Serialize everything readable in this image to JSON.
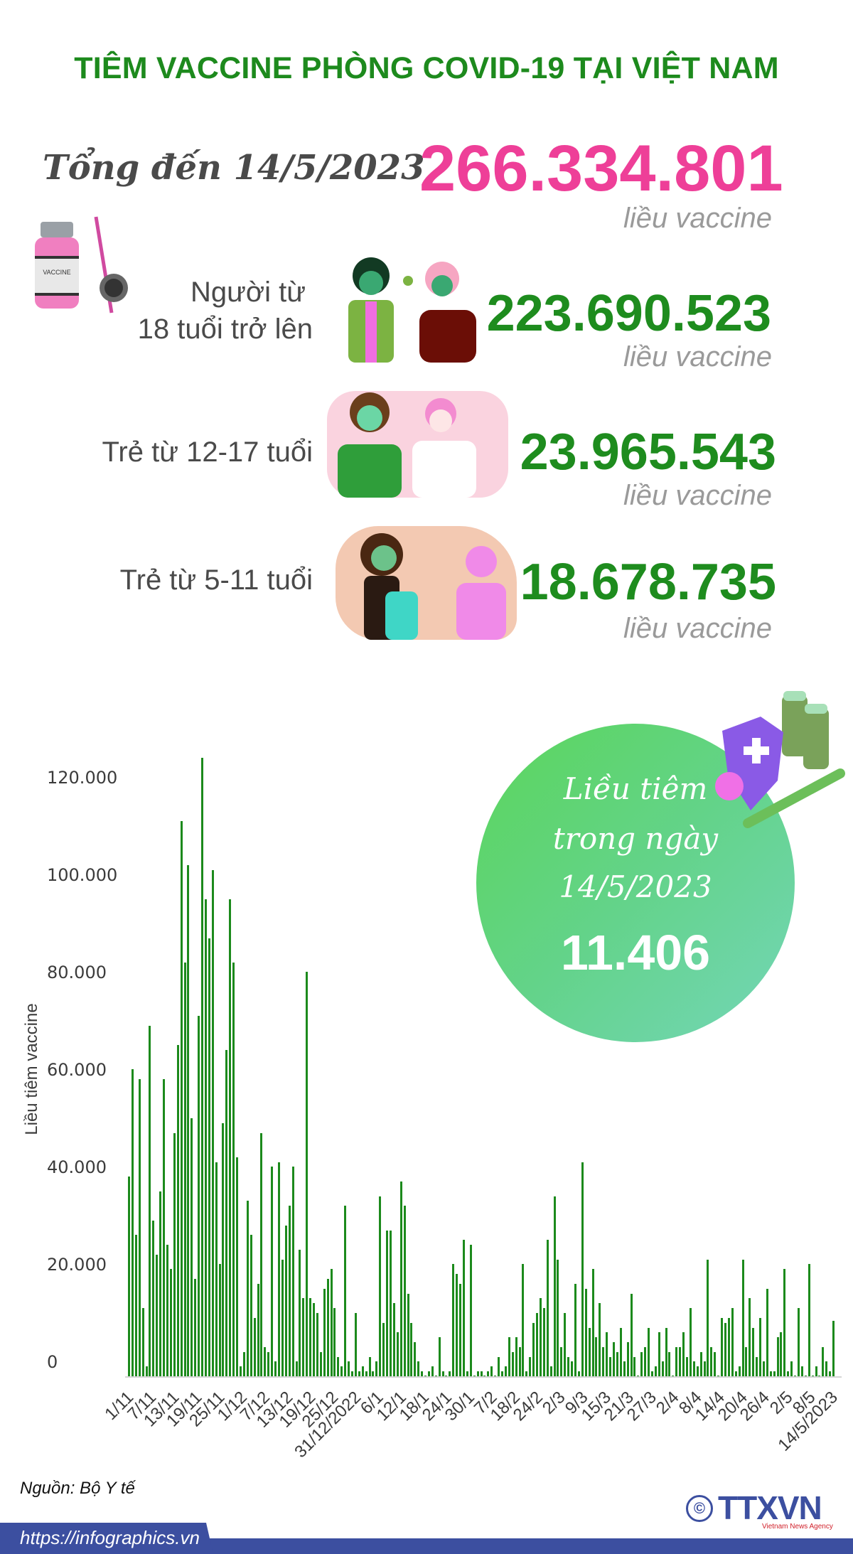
{
  "title": "TIÊM VACCINE PHÒNG COVID-19 TẠI VIỆT NAM",
  "total": {
    "label": "Tổng đến 14/5/2023",
    "value": "266.334.801",
    "unit": "liều vaccine",
    "icon": "vaccine-vial-icon"
  },
  "groups": [
    {
      "label_line1": "Người từ",
      "label_line2": "18 tuổi trở lên",
      "value": "223.690.523",
      "unit": "liều vaccine",
      "icon": "adult-vaccination-illustration"
    },
    {
      "label_line1": "Trẻ từ 12-17 tuổi",
      "label_line2": "",
      "value": "23.965.543",
      "unit": "liều vaccine",
      "icon": "teen-vaccination-illustration"
    },
    {
      "label_line1": "Trẻ từ 5-11 tuổi",
      "label_line2": "",
      "value": "18.678.735",
      "unit": "liều vaccine",
      "icon": "child-vaccination-illustration"
    }
  ],
  "daily_badge": {
    "line1": "Liều tiêm",
    "line2": "trong ngày",
    "line3": "14/5/2023",
    "value": "11.406",
    "icon": "shield-vaccine-syringe-icon"
  },
  "colors": {
    "title_green": "#1d8a1d",
    "total_pink": "#ee3f98",
    "value_green": "#1e8c1e",
    "unit_gray": "#9a9a9a",
    "bar_green": "#1c8a1c",
    "footer_blue": "#3c4fa0"
  },
  "chart_data": {
    "type": "bar",
    "title": "",
    "xlabel": "",
    "ylabel": "Liều tiêm vaccine",
    "ylim": [
      0,
      130000
    ],
    "yticks": [
      "0",
      "20.000",
      "40.000",
      "60.000",
      "80.000",
      "100.000",
      "120.000"
    ],
    "ytick_values": [
      0,
      20000,
      40000,
      60000,
      80000,
      100000,
      120000
    ],
    "grid": false,
    "legend": "none",
    "xtick_labels": [
      "1/11",
      "7/11",
      "13/11",
      "19/11",
      "25/11",
      "1/12",
      "7/12",
      "13/12",
      "19/12",
      "25/12",
      "31/12/2022",
      "6/1",
      "12/1",
      "18/1",
      "24/1",
      "30/1",
      "7/2",
      "18/2",
      "24/2",
      "2/3",
      "9/3",
      "15/3",
      "21/3",
      "27/3",
      "2/4",
      "8/4",
      "14/4",
      "20/4",
      "26/4",
      "2/5",
      "8/5",
      "14/5/2023"
    ],
    "series": [
      {
        "name": "Liều tiêm vaccine",
        "values": [
          41000,
          63000,
          29000,
          61000,
          14000,
          2000,
          72000,
          32000,
          25000,
          38000,
          61000,
          27000,
          22000,
          50000,
          68000,
          114000,
          85000,
          105000,
          53000,
          20000,
          74000,
          127000,
          98000,
          90000,
          104000,
          44000,
          23000,
          52000,
          67000,
          98000,
          85000,
          45000,
          2000,
          5000,
          36000,
          29000,
          12000,
          19000,
          50000,
          6000,
          5000,
          43000,
          3000,
          44000,
          24000,
          31000,
          35000,
          43000,
          3000,
          26000,
          16000,
          83000,
          16000,
          15000,
          13000,
          5000,
          18000,
          20000,
          22000,
          14000,
          4000,
          2000,
          35000,
          3000,
          1000,
          13000,
          1000,
          2000,
          1000,
          4000,
          1000,
          3000,
          37000,
          11000,
          30000,
          30000,
          15000,
          9000,
          40000,
          35000,
          17000,
          11000,
          7000,
          3000,
          1000,
          0,
          1000,
          2000,
          0,
          8000,
          1000,
          0,
          1000,
          23000,
          21000,
          19000,
          28000,
          1000,
          27000,
          0,
          1000,
          1000,
          0,
          1000,
          2000,
          0,
          4000,
          1000,
          2000,
          8000,
          5000,
          8000,
          6000,
          23000,
          1000,
          4000,
          11000,
          13000,
          16000,
          14000,
          28000,
          2000,
          37000,
          24000,
          6000,
          13000,
          4000,
          3000,
          19000,
          1000,
          44000,
          18000,
          10000,
          22000,
          8000,
          15000,
          6000,
          9000,
          4000,
          7000,
          5000,
          10000,
          3000,
          7000,
          17000,
          4000,
          0,
          5000,
          6000,
          10000,
          1000,
          2000,
          9000,
          3000,
          10000,
          5000,
          0,
          6000,
          6000,
          9000,
          4000,
          14000,
          3000,
          2000,
          5000,
          3000,
          24000,
          6000,
          5000,
          0,
          12000,
          11000,
          12000,
          14000,
          1000,
          2000,
          24000,
          6000,
          16000,
          10000,
          4000,
          12000,
          3000,
          18000,
          1000,
          1000,
          8000,
          9000,
          22000,
          1000,
          3000,
          0,
          14000,
          2000,
          0,
          23000,
          0,
          2000,
          0,
          6000,
          3000,
          1000,
          11406
        ]
      }
    ]
  },
  "footer": {
    "source": "Nguồn: Bộ Y tế",
    "url": "https://infographics.vn",
    "logo_text": "TTXVN",
    "logo_copyright": "©",
    "logo_subtitle": "Vietnam News Agency"
  }
}
